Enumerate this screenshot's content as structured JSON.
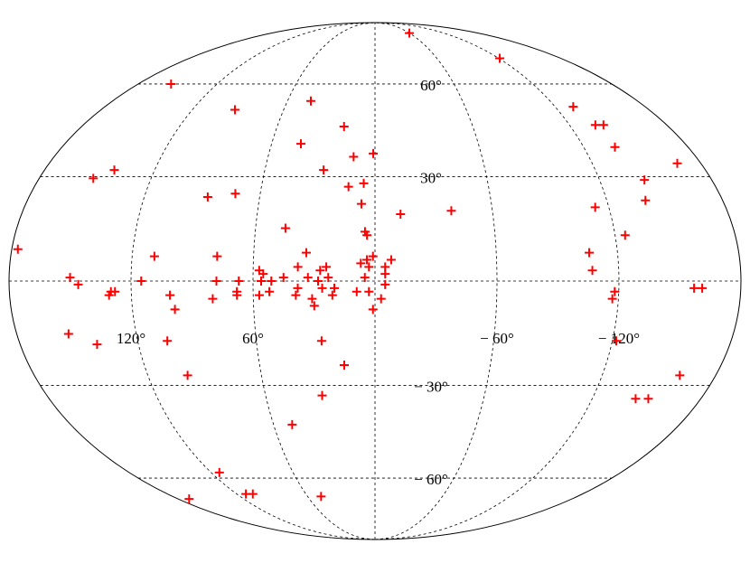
{
  "chart_data": {
    "type": "scatter",
    "projection": "mollweide",
    "color": "#ff0000",
    "grid": true,
    "xlim": [
      180,
      -180
    ],
    "ylim": [
      -90,
      90
    ],
    "xticks": [
      {
        "value": 120,
        "label": "120°"
      },
      {
        "value": 60,
        "label": "60°"
      },
      {
        "value": -60,
        "label": "− 60°"
      },
      {
        "value": -120,
        "label": "− 120°"
      }
    ],
    "yticks": [
      {
        "value": 60,
        "label": "60°"
      },
      {
        "value": 30,
        "label": "30°"
      },
      {
        "value": -30,
        "label": "− 30°"
      },
      {
        "value": -60,
        "label": "− 60°"
      }
    ],
    "x": [
      177,
      150,
      146,
      151,
      142,
      154,
      141,
      130,
      131,
      128,
      115,
      109,
      105,
      101,
      99,
      99,
      87,
      73,
      78,
      78,
      80,
      67,
      68,
      68,
      57,
      55,
      56,
      57,
      51,
      52,
      45,
      45,
      38,
      38,
      39,
      34,
      33,
      31,
      30,
      28,
      27,
      26,
      28,
      24,
      23,
      21,
      20,
      27,
      16,
      29,
      19,
      14,
      12,
      6,
      7,
      9,
      5,
      3,
      1,
      -3,
      -5,
      3,
      5,
      4,
      1,
      7,
      4,
      1,
      -5,
      -8,
      -5,
      -13,
      -39,
      44,
      43,
      92,
      155,
      -60,
      -121,
      -132,
      -136,
      -141,
      -138,
      -144,
      -140,
      -167,
      -113,
      -125,
      -106,
      -107,
      -118,
      -117,
      -122,
      -157,
      -161,
      -161,
      -144,
      -151,
      49,
      114,
      170,
      112,
      106,
      48
    ],
    "values": [
      9,
      1,
      -1,
      29.5,
      32,
      -15,
      -18,
      -3,
      -4,
      -3,
      0,
      7,
      -17,
      -4,
      -8,
      -27,
      24,
      25,
      7,
      0,
      -5,
      0,
      -3,
      -4,
      3,
      2,
      0,
      -4,
      0,
      -3,
      1,
      15,
      4,
      -2,
      -4,
      8,
      1,
      -5,
      -7,
      0,
      3,
      -2,
      32,
      4,
      1,
      -4,
      -2,
      -17,
      -24,
      -33,
      45.5,
      27,
      36,
      28,
      22,
      -3,
      1,
      -3,
      -8,
      -5,
      -1,
      4,
      14,
      13,
      7,
      5,
      6,
      37,
      4,
      6,
      2,
      19,
      20,
      54,
      40,
      51,
      60,
      82,
      70,
      52,
      46,
      46,
      39,
      29,
      23,
      34,
      21,
      13,
      8,
      3,
      -3,
      -5,
      -17,
      -2,
      -2,
      -27,
      -34,
      -34,
      -42,
      -58,
      -68,
      -66,
      -66,
      -67
    ]
  }
}
